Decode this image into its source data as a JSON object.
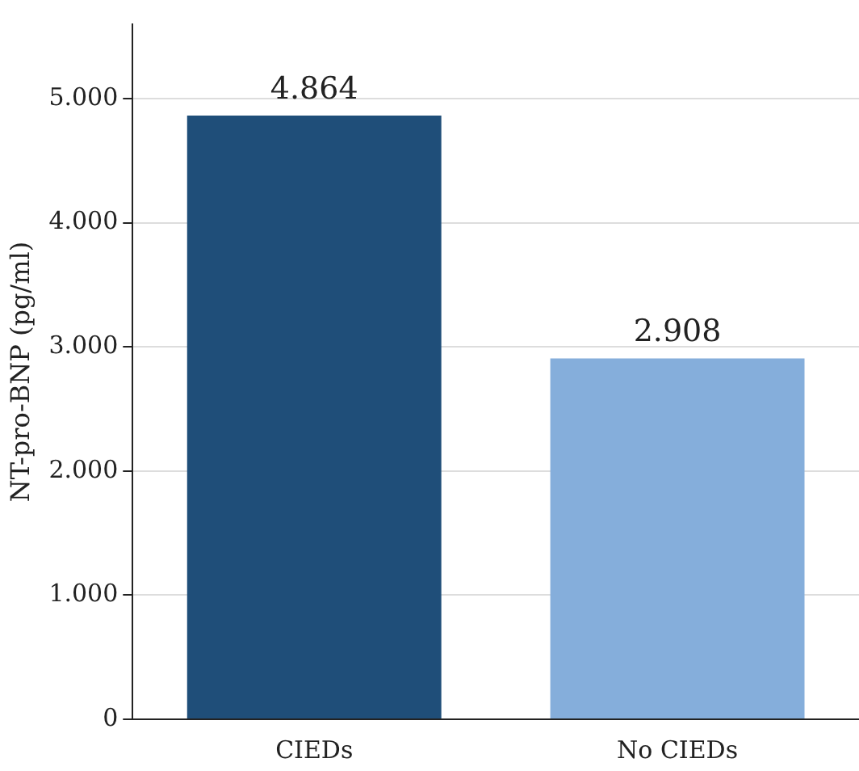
{
  "chart_data": {
    "type": "bar",
    "ylabel": "NT-pro-BNP (pg/ml)",
    "categories": [
      "CIEDs",
      "No CIEDs"
    ],
    "values": [
      4864,
      2908
    ],
    "colors": [
      "#1f4e79",
      "#85aedb"
    ],
    "value_labels": [
      "4.864",
      "2.908"
    ],
    "ylim": [
      0,
      5600
    ],
    "yticks": [
      {
        "value": 0,
        "label": "0"
      },
      {
        "value": 1000,
        "label": "1.000"
      },
      {
        "value": 2000,
        "label": "2.000"
      },
      {
        "value": 3000,
        "label": "3.000"
      },
      {
        "value": 4000,
        "label": "4.000"
      },
      {
        "value": 5000,
        "label": "5.000"
      }
    ],
    "grid": "y",
    "legend": false
  }
}
